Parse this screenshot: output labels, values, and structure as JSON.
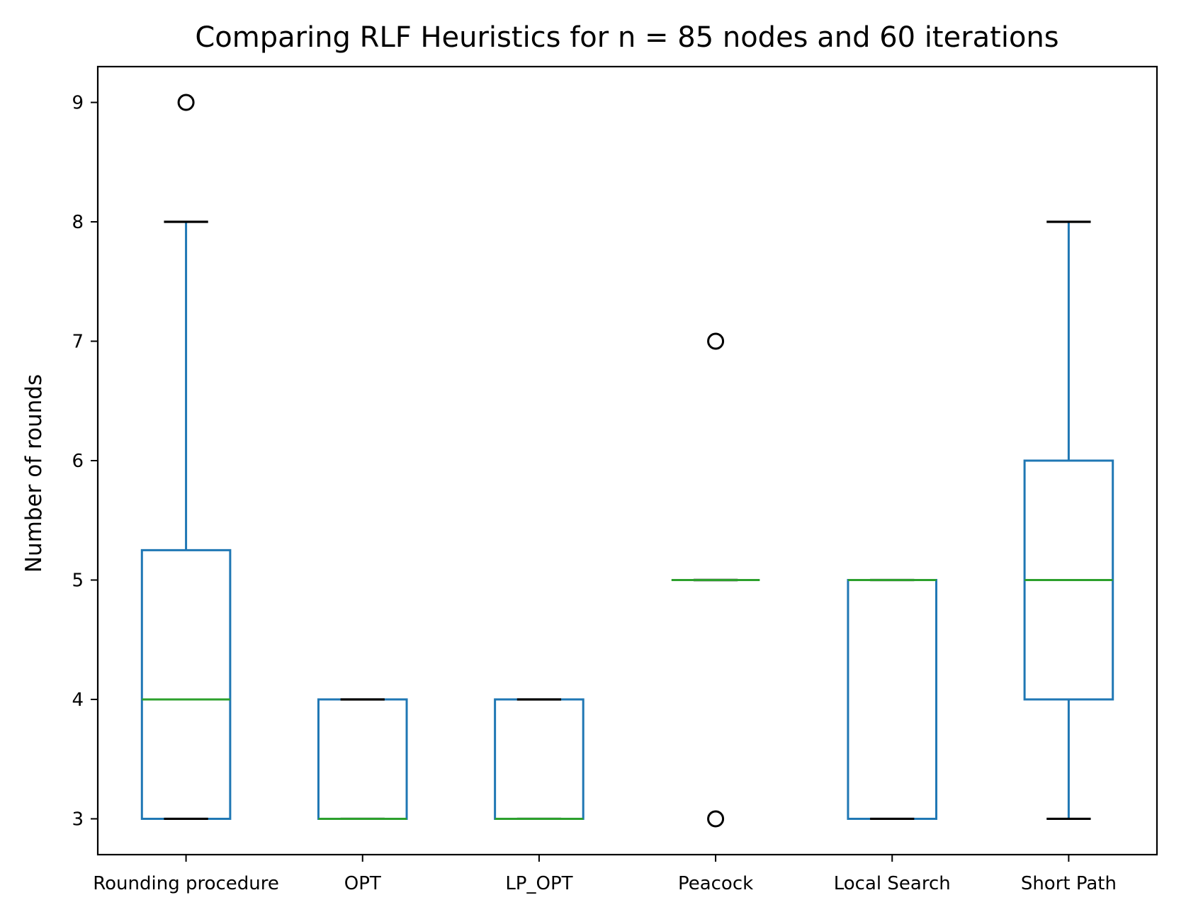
{
  "chart_data": {
    "type": "box",
    "title": "Comparing RLF Heuristics for n = 85 nodes and 60 iterations",
    "xlabel": "",
    "ylabel": "Number of rounds",
    "ylim": [
      2.7,
      9.3
    ],
    "yticks": [
      3,
      4,
      5,
      6,
      7,
      8,
      9
    ],
    "grid": false,
    "categories": [
      "Rounding procedure",
      "OPT",
      "LP_OPT",
      "Peacock",
      "Local Search",
      "Short Path"
    ],
    "boxes": [
      {
        "category": "Rounding procedure",
        "whisker_low": 3,
        "q1": 3,
        "median": 4,
        "q3": 5.25,
        "whisker_high": 8,
        "outliers": [
          9
        ]
      },
      {
        "category": "OPT",
        "whisker_low": 3,
        "q1": 3,
        "median": 3,
        "q3": 4,
        "whisker_high": 4,
        "outliers": []
      },
      {
        "category": "LP_OPT",
        "whisker_low": 3,
        "q1": 3,
        "median": 3,
        "q3": 4,
        "whisker_high": 4,
        "outliers": []
      },
      {
        "category": "Peacock",
        "whisker_low": 5,
        "q1": 5,
        "median": 5,
        "q3": 5,
        "whisker_high": 5,
        "outliers": [
          7,
          3
        ]
      },
      {
        "category": "Local Search",
        "whisker_low": 3,
        "q1": 3,
        "median": 5,
        "q3": 5,
        "whisker_high": 5,
        "outliers": []
      },
      {
        "category": "Short Path",
        "whisker_low": 3,
        "q1": 4,
        "median": 5,
        "q3": 6,
        "whisker_high": 8,
        "outliers": []
      }
    ],
    "colors": {
      "box": "#1f77b4",
      "median": "#2ca02c",
      "cap": "#000000",
      "outlier": "#000000",
      "axis": "#000000"
    }
  }
}
